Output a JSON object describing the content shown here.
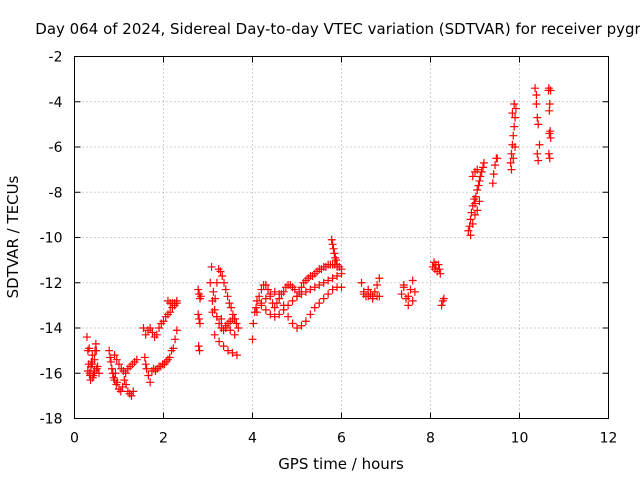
{
  "chart_data": {
    "type": "scatter",
    "title": "Day 064 of 2024, Sidereal Day-to-day VTEC variation (SDTVAR) for receiver pygr",
    "xlabel": "GPS time / hours",
    "ylabel": "SDTVAR / TECUs",
    "xlim": [
      0,
      12
    ],
    "ylim": [
      -18,
      -2
    ],
    "xticks": [
      0,
      2,
      4,
      6,
      8,
      10,
      12
    ],
    "yticks": [
      -18,
      -16,
      -14,
      -12,
      -10,
      -8,
      -6,
      -4,
      -2
    ],
    "grid": true,
    "marker": "+",
    "color": "#ff0000",
    "series": [
      {
        "name": "SDTVAR",
        "x": [
          0.28,
          0.3,
          0.32,
          0.34,
          0.36,
          0.38,
          0.4,
          0.42,
          0.44,
          0.46,
          0.48,
          0.5,
          0.33,
          0.37,
          0.41,
          0.45,
          0.49,
          0.3,
          0.35,
          0.4,
          0.45,
          0.52,
          0.55,
          0.78,
          0.8,
          0.82,
          0.84,
          0.86,
          0.88,
          0.9,
          0.92,
          0.94,
          0.96,
          1.0,
          1.04,
          1.08,
          1.12,
          1.16,
          1.2,
          1.24,
          1.28,
          1.32,
          0.9,
          0.95,
          1.0,
          1.05,
          1.1,
          1.15,
          1.2,
          1.25,
          1.3,
          1.35,
          1.4,
          1.55,
          1.58,
          1.6,
          1.62,
          1.66,
          1.7,
          1.74,
          1.78,
          1.82,
          1.86,
          1.9,
          1.94,
          1.98,
          2.02,
          2.06,
          2.1,
          2.14,
          2.18,
          2.22,
          2.26,
          2.3,
          1.6,
          1.65,
          1.7,
          1.75,
          1.8,
          1.85,
          1.9,
          1.95,
          2.0,
          2.05,
          2.1,
          2.15,
          2.2,
          2.25,
          2.3,
          2.1,
          2.15,
          2.2,
          2.25,
          2.3,
          2.78,
          2.8,
          2.82,
          2.84,
          2.78,
          2.8,
          2.82,
          2.79,
          2.81,
          3.05,
          3.08,
          3.12,
          3.16,
          3.2,
          3.24,
          3.28,
          3.32,
          3.36,
          3.4,
          3.44,
          3.48,
          3.52,
          3.56,
          3.6,
          3.64,
          3.68,
          3.1,
          3.15,
          3.2,
          3.25,
          3.3,
          3.35,
          3.4,
          3.45,
          3.5,
          3.55,
          3.6,
          3.15,
          3.25,
          3.35,
          3.45,
          3.55,
          3.65,
          3.1,
          3.2,
          3.3,
          3.4,
          3.5,
          3.6,
          4.0,
          4.02,
          4.05,
          4.08,
          4.1,
          4.15,
          4.2,
          4.25,
          4.3,
          4.35,
          4.4,
          4.45,
          4.5,
          4.55,
          4.6,
          4.65,
          4.7,
          4.75,
          4.8,
          4.85,
          4.9,
          4.95,
          5.0,
          5.05,
          5.1,
          5.15,
          5.2,
          5.25,
          5.3,
          5.35,
          5.4,
          5.45,
          5.5,
          5.55,
          5.6,
          5.65,
          5.7,
          5.75,
          5.8,
          5.85,
          5.9,
          5.95,
          6.0,
          4.2,
          4.3,
          4.4,
          4.5,
          4.6,
          4.7,
          4.8,
          4.9,
          5.0,
          5.1,
          5.2,
          5.3,
          5.4,
          5.5,
          5.6,
          5.7,
          5.8,
          5.9,
          6.0,
          4.1,
          4.2,
          4.3,
          4.4,
          4.5,
          4.6,
          4.7,
          4.8,
          4.9,
          5.0,
          5.1,
          5.2,
          5.3,
          5.4,
          5.5,
          5.6,
          5.7,
          5.8,
          5.9,
          6.0,
          5.78,
          5.8,
          5.82,
          5.84,
          5.86,
          5.88,
          5.9,
          6.45,
          6.5,
          6.55,
          6.6,
          6.65,
          6.7,
          6.75,
          6.8,
          6.85,
          6.5,
          6.6,
          6.7,
          6.8,
          6.85,
          7.35,
          7.4,
          7.45,
          7.5,
          7.55,
          7.6,
          7.65,
          7.4,
          7.5,
          7.6,
          8.05,
          8.08,
          8.1,
          8.12,
          8.15,
          8.18,
          8.2,
          8.22,
          8.25,
          8.28,
          8.3,
          8.85,
          8.88,
          8.9,
          8.92,
          8.95,
          8.98,
          9.0,
          9.02,
          9.05,
          9.08,
          9.1,
          9.12,
          9.15,
          9.18,
          9.2,
          8.9,
          8.95,
          9.0,
          9.05,
          9.1,
          8.95,
          9.0,
          9.05,
          9.4,
          9.42,
          9.45,
          9.48,
          9.5,
          9.8,
          9.82,
          9.84,
          9.86,
          9.88,
          9.9,
          9.92,
          9.82,
          9.86,
          9.9,
          9.84,
          9.88,
          10.35,
          10.38,
          10.4,
          10.42,
          10.45,
          10.4,
          10.42,
          10.38,
          10.65,
          10.66,
          10.67,
          10.68,
          10.69,
          10.7,
          10.66,
          10.68,
          10.7,
          10.67
        ],
        "y": [
          -14.4,
          -15.0,
          -15.6,
          -16.0,
          -16.3,
          -15.5,
          -15.2,
          -16.1,
          -16.0,
          -15.0,
          -14.7,
          -15.8,
          -14.9,
          -15.7,
          -16.2,
          -15.4,
          -15.0,
          -15.9,
          -16.1,
          -15.6,
          -15.9,
          -15.7,
          -16.0,
          -15.0,
          -15.3,
          -15.5,
          -15.8,
          -16.0,
          -16.2,
          -16.3,
          -16.0,
          -16.5,
          -16.4,
          -16.7,
          -16.8,
          -16.6,
          -16.3,
          -16.5,
          -16.8,
          -16.9,
          -17.0,
          -16.8,
          -15.2,
          -15.4,
          -15.6,
          -15.8,
          -15.9,
          -16.0,
          -15.8,
          -15.7,
          -15.6,
          -15.5,
          -15.4,
          -14.0,
          -15.3,
          -15.6,
          -15.8,
          -16.1,
          -16.4,
          -15.9,
          -15.8,
          -15.9,
          -15.8,
          -15.7,
          -15.7,
          -15.6,
          -15.6,
          -15.5,
          -15.4,
          -15.3,
          -15.0,
          -14.9,
          -14.5,
          -14.1,
          -14.3,
          -14.1,
          -14.0,
          -14.2,
          -14.4,
          -14.3,
          -14.0,
          -13.8,
          -13.7,
          -13.5,
          -13.4,
          -13.3,
          -13.1,
          -12.9,
          -12.8,
          -12.8,
          -12.9,
          -12.9,
          -13.0,
          -12.9,
          -12.3,
          -12.5,
          -12.7,
          -12.6,
          -13.4,
          -13.6,
          -13.8,
          -14.8,
          -15.0,
          -12.0,
          -11.3,
          -12.4,
          -12.7,
          -12.0,
          -11.4,
          -11.5,
          -11.7,
          -12.0,
          -12.3,
          -12.6,
          -12.9,
          -13.1,
          -13.4,
          -13.6,
          -13.8,
          -14.0,
          -12.8,
          -13.2,
          -13.5,
          -13.8,
          -14.0,
          -14.1,
          -14.0,
          -13.8,
          -13.7,
          -13.6,
          -13.6,
          -14.3,
          -14.6,
          -14.8,
          -15.0,
          -15.1,
          -15.2,
          -13.3,
          -13.5,
          -13.6,
          -13.9,
          -14.1,
          -14.3,
          -14.5,
          -13.8,
          -13.3,
          -13.1,
          -12.8,
          -12.6,
          -12.3,
          -12.1,
          -12.1,
          -12.3,
          -12.6,
          -12.9,
          -13.1,
          -12.9,
          -12.7,
          -12.5,
          -12.4,
          -12.2,
          -12.1,
          -12.1,
          -12.2,
          -12.3,
          -12.6,
          -12.4,
          -12.2,
          -12.0,
          -11.9,
          -11.8,
          -11.7,
          -11.7,
          -11.6,
          -11.5,
          -11.4,
          -11.4,
          -11.3,
          -11.3,
          -11.2,
          -11.2,
          -11.2,
          -11.2,
          -11.3,
          -11.3,
          -11.4,
          -12.9,
          -13.2,
          -13.4,
          -13.5,
          -13.4,
          -13.2,
          -13.0,
          -12.8,
          -12.6,
          -12.5,
          -12.4,
          -12.3,
          -12.2,
          -12.1,
          -12.0,
          -11.9,
          -11.8,
          -11.7,
          -11.6,
          -13.3,
          -13.0,
          -12.7,
          -12.5,
          -12.4,
          -12.5,
          -13.0,
          -13.5,
          -13.8,
          -14.0,
          -13.9,
          -13.7,
          -13.4,
          -13.1,
          -12.9,
          -12.7,
          -12.5,
          -12.3,
          -12.2,
          -12.2,
          -10.1,
          -10.3,
          -10.5,
          -10.7,
          -10.9,
          -11.0,
          -11.2,
          -12.0,
          -12.4,
          -12.6,
          -12.3,
          -12.5,
          -12.7,
          -12.4,
          -12.1,
          -11.8,
          -12.5,
          -12.6,
          -12.6,
          -12.6,
          -12.6,
          -12.5,
          -12.1,
          -12.7,
          -13.0,
          -12.3,
          -11.9,
          -12.4,
          -12.2,
          -12.6,
          -12.8,
          -11.3,
          -11.1,
          -11.4,
          -11.2,
          -11.5,
          -11.2,
          -11.4,
          -11.6,
          -13.0,
          -12.8,
          -12.7,
          -9.7,
          -9.5,
          -9.2,
          -8.9,
          -8.6,
          -8.3,
          -8.5,
          -8.2,
          -7.9,
          -7.7,
          -7.5,
          -7.3,
          -7.1,
          -6.9,
          -6.7,
          -9.9,
          -9.4,
          -9.0,
          -8.8,
          -8.4,
          -7.3,
          -7.1,
          -7.0,
          -7.6,
          -7.2,
          -6.8,
          -6.5,
          -6.5,
          -6.7,
          -6.3,
          -5.9,
          -5.5,
          -5.1,
          -4.7,
          -4.3,
          -7.0,
          -6.5,
          -6.0,
          -4.5,
          -4.1,
          -3.4,
          -3.7,
          -4.7,
          -5.0,
          -5.9,
          -6.3,
          -6.6,
          -4.1,
          -3.5,
          -3.4,
          -4.4,
          -4.1,
          -5.3,
          -5.6,
          -6.3,
          -6.5,
          -3.5,
          -5.4
        ]
      }
    ]
  }
}
